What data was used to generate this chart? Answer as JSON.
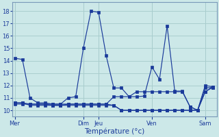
{
  "title": "Température (°c)",
  "bg_color": "#cce8e8",
  "grid_color": "#aacece",
  "line_color": "#1a3a9a",
  "ylim": [
    9.5,
    18.7
  ],
  "yticks": [
    10,
    11,
    12,
    13,
    14,
    15,
    16,
    17,
    18
  ],
  "x_day_labels": [
    "Mer",
    "Dim",
    "Jeu",
    "Ven",
    "Sam"
  ],
  "x_day_positions": [
    0,
    9,
    11,
    18,
    25
  ],
  "xlim": [
    -0.3,
    26.5
  ],
  "num_points": 27,
  "series": {
    "line1": [
      14.2,
      14.1,
      11.0,
      10.6,
      10.6,
      10.5,
      10.5,
      11.0,
      11.1,
      15.0,
      18.0,
      17.9,
      14.4,
      11.8,
      11.8,
      11.1,
      11.1,
      11.15,
      13.5,
      12.5,
      16.8,
      11.55,
      11.55,
      10.3,
      10.0,
      12.0,
      11.9
    ],
    "line2": [
      10.5,
      10.5,
      10.5,
      10.5,
      10.5,
      10.5,
      10.5,
      10.5,
      10.5,
      10.5,
      10.5,
      10.5,
      10.5,
      11.1,
      11.1,
      11.1,
      11.5,
      11.5,
      11.5,
      11.5,
      11.5,
      11.5,
      11.5,
      10.3,
      10.0,
      11.8,
      11.85
    ],
    "line3": [
      10.6,
      10.6,
      10.5,
      10.5,
      10.5,
      10.4,
      10.4,
      10.5,
      10.5,
      10.5,
      10.5,
      10.5,
      10.5,
      10.4,
      10.0,
      10.0,
      10.0,
      10.0,
      10.0,
      10.0,
      10.0,
      10.0,
      10.0,
      10.0,
      10.0,
      11.5,
      11.9
    ],
    "line4": [
      10.6,
      10.6,
      10.4,
      10.4,
      10.4,
      10.4,
      10.4,
      10.4,
      10.4,
      10.4,
      10.4,
      10.4,
      10.4,
      10.4,
      10.0,
      10.0,
      10.0,
      10.0,
      10.0,
      10.0,
      10.0,
      10.0,
      10.0,
      10.0,
      10.0,
      11.5,
      11.85
    ]
  }
}
